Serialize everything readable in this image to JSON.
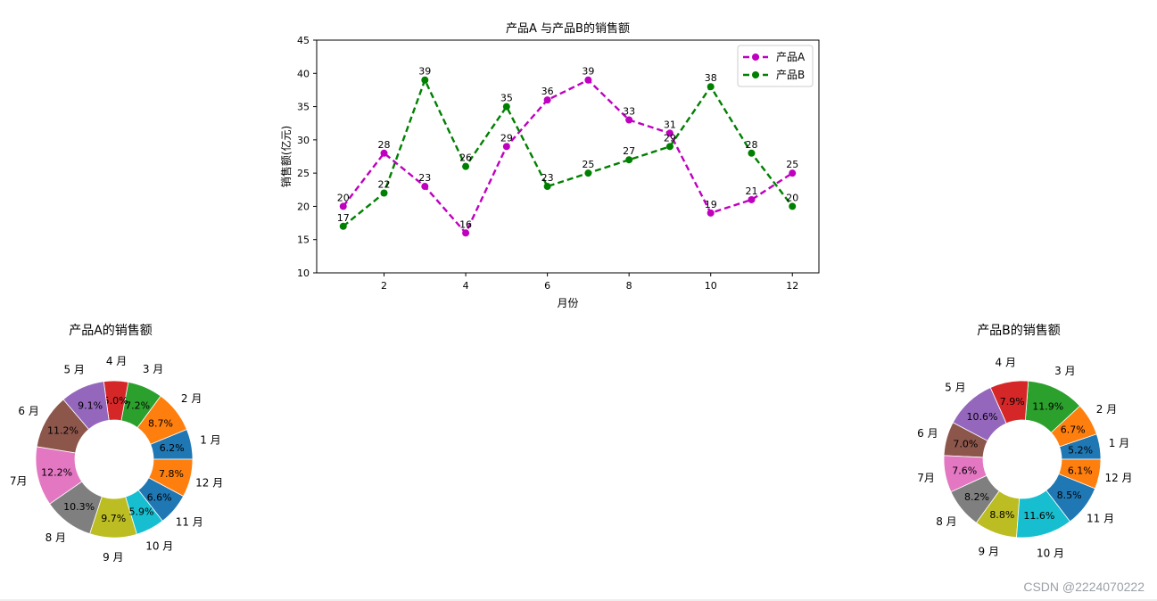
{
  "chart_data": [
    {
      "type": "line",
      "title": "产品A 与产品B的销售额",
      "xlabel": "月份",
      "ylabel": "销售额(亿元)",
      "x": [
        1,
        2,
        3,
        4,
        5,
        6,
        7,
        8,
        9,
        10,
        11,
        12
      ],
      "xticks": [
        2,
        4,
        6,
        8,
        10,
        12
      ],
      "yticks": [
        10,
        15,
        20,
        25,
        30,
        35,
        40,
        45
      ],
      "xlim": [
        0.35,
        12.65
      ],
      "ylim": [
        10,
        45
      ],
      "legend_position": "top-right",
      "series": [
        {
          "name": "产品A",
          "color": "#bf00bf",
          "style": "dashed",
          "marker": "circle",
          "values": [
            20,
            28,
            23,
            16,
            29,
            36,
            39,
            33,
            31,
            19,
            21,
            25
          ],
          "labels": [
            "20",
            "28",
            "23",
            "16",
            "29",
            "36",
            "39",
            "33",
            "31",
            "19",
            "21",
            "25"
          ]
        },
        {
          "name": "产品B",
          "color": "#008000",
          "style": "dashed",
          "marker": "circle",
          "values": [
            17,
            22,
            39,
            26,
            35,
            23,
            25,
            27,
            29,
            38,
            28,
            20
          ],
          "labels": [
            "17",
            "22",
            "39",
            "26",
            "35",
            "23",
            "25",
            "27",
            "29",
            "38",
            "28",
            "20"
          ]
        }
      ]
    },
    {
      "type": "pie",
      "title": "产品A的销售额",
      "donut": true,
      "categories": [
        "1 月",
        "2 月",
        "3 月",
        "4 月",
        "5 月",
        "6 月",
        "7月",
        "8 月",
        "9 月",
        "10 月",
        "11 月",
        "12 月"
      ],
      "values": [
        6.2,
        8.7,
        7.2,
        5.0,
        9.1,
        11.2,
        12.2,
        10.3,
        9.7,
        5.9,
        6.6,
        7.8
      ],
      "labels": [
        "6.2%",
        "8.7%",
        "7.2%",
        "5.0%",
        "9.1%",
        "11.2%",
        "12.2%",
        "10.3%",
        "9.7%",
        "5.9%",
        "6.6%",
        "7.8%"
      ]
    },
    {
      "type": "pie",
      "title": "产品B的销售额",
      "donut": true,
      "categories": [
        "1 月",
        "2 月",
        "3 月",
        "4 月",
        "5 月",
        "6 月",
        "7月",
        "8 月",
        "9 月",
        "10 月",
        "11 月",
        "12 月"
      ],
      "values": [
        5.2,
        6.7,
        11.9,
        7.9,
        10.6,
        7.0,
        7.6,
        8.2,
        8.8,
        11.6,
        8.5,
        6.1
      ],
      "labels": [
        "5.2%",
        "6.7%",
        "11.9%",
        "7.9%",
        "10.6%",
        "7.0%",
        "7.6%",
        "8.2%",
        "8.8%",
        "11.6%",
        "8.5%",
        "6.1%"
      ]
    }
  ],
  "palette": [
    "#1f77b4",
    "#ff7f0e",
    "#2ca02c",
    "#d62728",
    "#9467bd",
    "#8c564b",
    "#e377c2",
    "#7f7f7f",
    "#bcbd22",
    "#17becf",
    "#1f77b4",
    "#ff7f0e"
  ],
  "watermark": "CSDN @2224070222"
}
